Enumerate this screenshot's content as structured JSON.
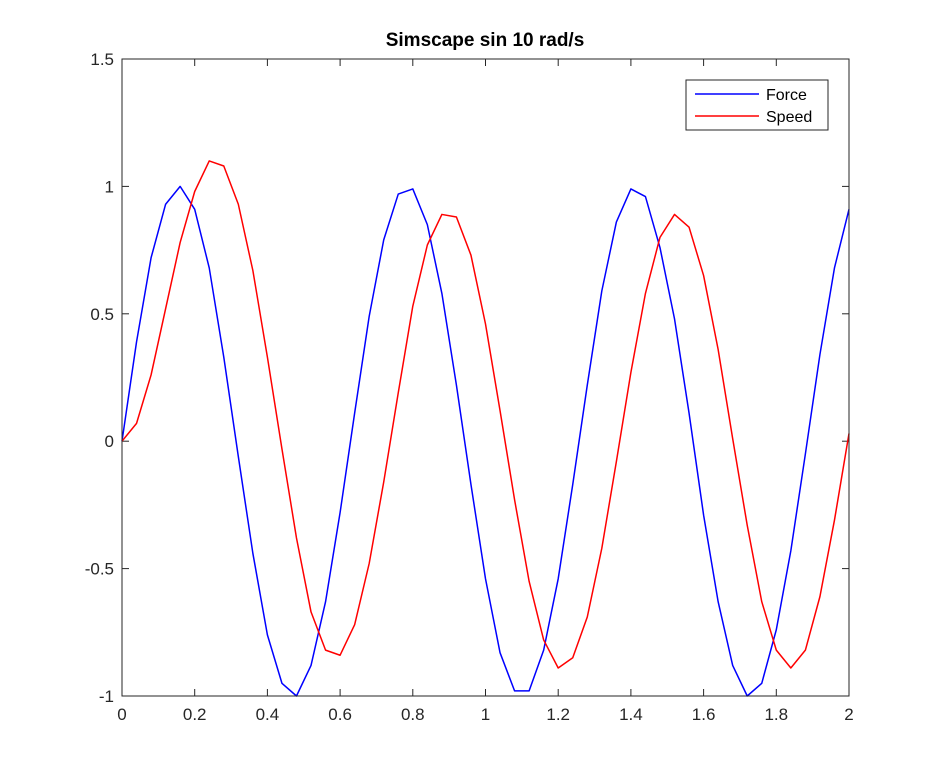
{
  "chart_data": {
    "type": "line",
    "title": "Simscape sin 10 rad/s",
    "xlabel": "",
    "ylabel": "",
    "xlim": [
      0,
      2
    ],
    "ylim": [
      -1,
      1.5
    ],
    "xticks": [
      0,
      0.2,
      0.4,
      0.6,
      0.8,
      1,
      1.2,
      1.4,
      1.6,
      1.8,
      2
    ],
    "xtick_labels": [
      "0",
      "0.2",
      "0.4",
      "0.6",
      "0.8",
      "1",
      "1.2",
      "1.4",
      "1.6",
      "1.8",
      "2"
    ],
    "yticks": [
      -1,
      -0.5,
      0,
      0.5,
      1,
      1.5
    ],
    "ytick_labels": [
      "-1",
      "-0.5",
      "0",
      "0.5",
      "1",
      "1.5"
    ],
    "grid": false,
    "legend_position": "top-right",
    "series": [
      {
        "name": "Force",
        "color": "#0000ff",
        "points": [
          [
            0,
            0
          ],
          [
            0.04,
            0.39
          ],
          [
            0.08,
            0.72
          ],
          [
            0.12,
            0.93
          ],
          [
            0.16,
            1.0
          ],
          [
            0.2,
            0.91
          ],
          [
            0.24,
            0.68
          ],
          [
            0.28,
            0.33
          ],
          [
            0.32,
            -0.06
          ],
          [
            0.36,
            -0.44
          ],
          [
            0.4,
            -0.76
          ],
          [
            0.44,
            -0.95
          ],
          [
            0.48,
            -1.0
          ],
          [
            0.52,
            -0.88
          ],
          [
            0.56,
            -0.63
          ],
          [
            0.6,
            -0.28
          ],
          [
            0.64,
            0.11
          ],
          [
            0.68,
            0.49
          ],
          [
            0.72,
            0.79
          ],
          [
            0.76,
            0.97
          ],
          [
            0.8,
            0.99
          ],
          [
            0.84,
            0.85
          ],
          [
            0.88,
            0.58
          ],
          [
            0.92,
            0.22
          ],
          [
            0.96,
            -0.17
          ],
          [
            1.0,
            -0.54
          ],
          [
            1.04,
            -0.83
          ],
          [
            1.08,
            -0.98
          ],
          [
            1.12,
            -0.98
          ],
          [
            1.16,
            -0.82
          ],
          [
            1.2,
            -0.54
          ],
          [
            1.24,
            -0.17
          ],
          [
            1.28,
            0.22
          ],
          [
            1.32,
            0.59
          ],
          [
            1.36,
            0.86
          ],
          [
            1.4,
            0.99
          ],
          [
            1.44,
            0.96
          ],
          [
            1.48,
            0.76
          ],
          [
            1.52,
            0.48
          ],
          [
            1.56,
            0.11
          ],
          [
            1.6,
            -0.29
          ],
          [
            1.64,
            -0.63
          ],
          [
            1.68,
            -0.88
          ],
          [
            1.72,
            -1.0
          ],
          [
            1.76,
            -0.95
          ],
          [
            1.8,
            -0.74
          ],
          [
            1.84,
            -0.43
          ],
          [
            1.88,
            -0.05
          ],
          [
            1.92,
            0.34
          ],
          [
            1.96,
            0.68
          ],
          [
            2.0,
            0.91
          ]
        ]
      },
      {
        "name": "Speed",
        "color": "#ff0000",
        "points": [
          [
            0,
            0
          ],
          [
            0.04,
            0.07
          ],
          [
            0.08,
            0.26
          ],
          [
            0.12,
            0.52
          ],
          [
            0.16,
            0.78
          ],
          [
            0.2,
            0.98
          ],
          [
            0.24,
            1.1
          ],
          [
            0.28,
            1.08
          ],
          [
            0.32,
            0.93
          ],
          [
            0.36,
            0.67
          ],
          [
            0.4,
            0.33
          ],
          [
            0.44,
            -0.03
          ],
          [
            0.48,
            -0.38
          ],
          [
            0.52,
            -0.67
          ],
          [
            0.56,
            -0.82
          ],
          [
            0.6,
            -0.84
          ],
          [
            0.64,
            -0.72
          ],
          [
            0.68,
            -0.48
          ],
          [
            0.72,
            -0.16
          ],
          [
            0.76,
            0.19
          ],
          [
            0.8,
            0.53
          ],
          [
            0.84,
            0.77
          ],
          [
            0.88,
            0.89
          ],
          [
            0.92,
            0.88
          ],
          [
            0.96,
            0.73
          ],
          [
            1.0,
            0.46
          ],
          [
            1.04,
            0.12
          ],
          [
            1.08,
            -0.23
          ],
          [
            1.12,
            -0.55
          ],
          [
            1.16,
            -0.78
          ],
          [
            1.2,
            -0.89
          ],
          [
            1.24,
            -0.85
          ],
          [
            1.28,
            -0.69
          ],
          [
            1.32,
            -0.42
          ],
          [
            1.36,
            -0.08
          ],
          [
            1.4,
            0.27
          ],
          [
            1.44,
            0.58
          ],
          [
            1.48,
            0.8
          ],
          [
            1.52,
            0.89
          ],
          [
            1.56,
            0.84
          ],
          [
            1.6,
            0.65
          ],
          [
            1.64,
            0.36
          ],
          [
            1.68,
            0.01
          ],
          [
            1.72,
            -0.33
          ],
          [
            1.76,
            -0.63
          ],
          [
            1.8,
            -0.82
          ],
          [
            1.84,
            -0.89
          ],
          [
            1.88,
            -0.82
          ],
          [
            1.92,
            -0.61
          ],
          [
            1.96,
            -0.31
          ],
          [
            2.0,
            0.03
          ]
        ]
      }
    ]
  }
}
